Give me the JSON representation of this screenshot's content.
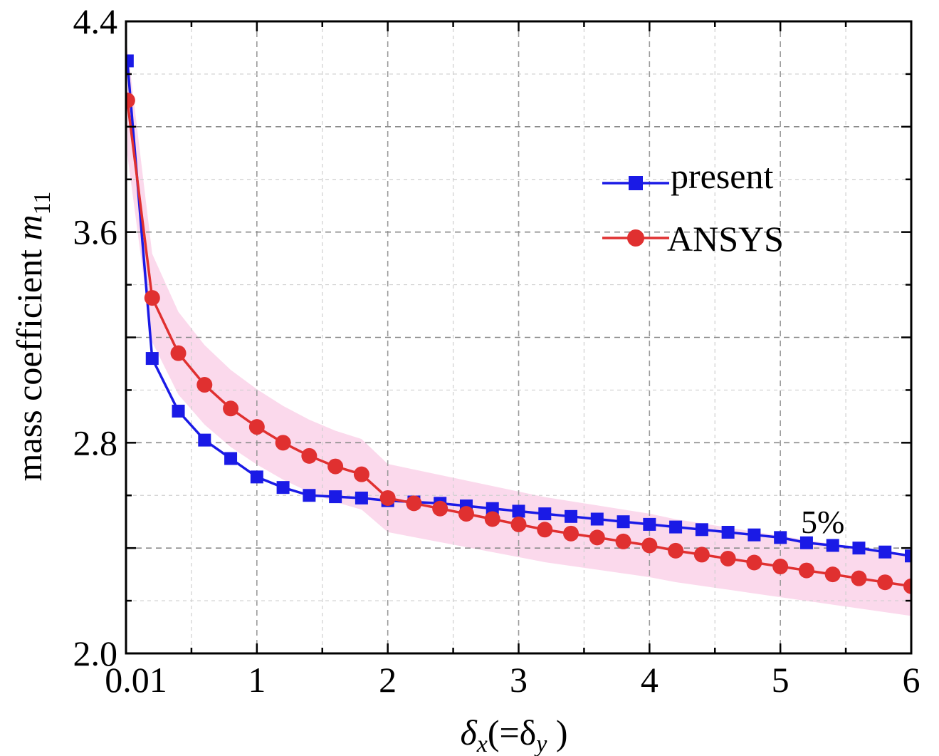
{
  "chart_data": {
    "type": "line",
    "title": "",
    "xlabel": {
      "prefix": "δ",
      "sub1": "x",
      "middle": "(=δ",
      "sub2": "y",
      "suffix": " )"
    },
    "ylabel": {
      "text": "mass coefficient ",
      "var": "m",
      "sub": "11"
    },
    "xlim": [
      0,
      6
    ],
    "ylim": [
      2.0,
      4.4
    ],
    "xticks": [
      {
        "value": 0,
        "label": "0.01"
      },
      {
        "value": 1,
        "label": "1"
      },
      {
        "value": 2,
        "label": "2"
      },
      {
        "value": 3,
        "label": "3"
      },
      {
        "value": 4,
        "label": "4"
      },
      {
        "value": 5,
        "label": "5"
      },
      {
        "value": 6,
        "label": "6"
      }
    ],
    "yticks": [
      {
        "value": 2.0,
        "label": "2.0"
      },
      {
        "value": 2.8,
        "label": "2.8"
      },
      {
        "value": 3.6,
        "label": "3.6"
      },
      {
        "value": 4.4,
        "label": "4.4"
      }
    ],
    "grid": true,
    "legend_position": "upper-right",
    "annotation": "5%",
    "band_percent": 5,
    "colors": {
      "present": "#1a1ae6",
      "ansys": "#e03030",
      "band": "#fbd9ec"
    },
    "series": [
      {
        "name": "present",
        "marker": "square",
        "x": [
          0.01,
          0.2,
          0.4,
          0.6,
          0.8,
          1.0,
          1.2,
          1.4,
          1.6,
          1.8,
          2.0,
          2.2,
          2.4,
          2.6,
          2.8,
          3.0,
          3.2,
          3.4,
          3.6,
          3.8,
          4.0,
          4.2,
          4.4,
          4.6,
          4.8,
          5.0,
          5.2,
          5.4,
          5.6,
          5.8,
          6.0
        ],
        "y": [
          4.25,
          3.12,
          2.92,
          2.81,
          2.74,
          2.67,
          2.63,
          2.6,
          2.595,
          2.59,
          2.58,
          2.575,
          2.57,
          2.56,
          2.55,
          2.54,
          2.53,
          2.52,
          2.51,
          2.5,
          2.49,
          2.48,
          2.47,
          2.46,
          2.45,
          2.44,
          2.42,
          2.41,
          2.4,
          2.385,
          2.37
        ]
      },
      {
        "name": "ANSYS",
        "marker": "circle",
        "x": [
          0.01,
          0.2,
          0.4,
          0.6,
          0.8,
          1.0,
          1.2,
          1.4,
          1.6,
          1.8,
          2.0,
          2.2,
          2.4,
          2.6,
          2.8,
          3.0,
          3.2,
          3.4,
          3.6,
          3.8,
          4.0,
          4.2,
          4.4,
          4.6,
          4.8,
          5.0,
          5.2,
          5.4,
          5.6,
          5.8,
          6.0
        ],
        "y": [
          4.1,
          3.35,
          3.14,
          3.02,
          2.93,
          2.86,
          2.8,
          2.75,
          2.71,
          2.68,
          2.59,
          2.57,
          2.55,
          2.53,
          2.51,
          2.49,
          2.47,
          2.455,
          2.44,
          2.425,
          2.41,
          2.39,
          2.375,
          2.36,
          2.345,
          2.33,
          2.315,
          2.3,
          2.285,
          2.27,
          2.255
        ]
      }
    ]
  }
}
